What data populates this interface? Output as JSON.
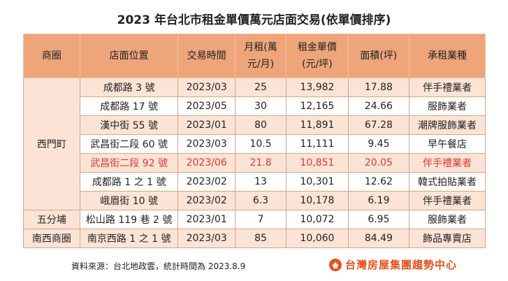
{
  "title": "2023 年台北市租金單價萬元店面交易(依單價排序)",
  "columns": [
    "商圈",
    "店面位置",
    "交易時間",
    "月租(萬元/月)",
    "租金單價(元/坪)",
    "面積(坪)",
    "承租業種"
  ],
  "groups": [
    {
      "district": "西門町",
      "rows": [
        {
          "cells": [
            "成都路 3 號",
            "2023/03",
            "25",
            "13,982",
            "17.88",
            "伴手禮業者"
          ]
        },
        {
          "cells": [
            "成都路 17 號",
            "2023/05",
            "30",
            "12,165",
            "24.66",
            "服飾業者"
          ]
        },
        {
          "cells": [
            "漢中街 55 號",
            "2023/01",
            "80",
            "11,891",
            "67.28",
            "潮牌服飾業者"
          ]
        },
        {
          "cells": [
            "武昌街二段 60 號",
            "2023/03",
            "10.5",
            "11,111",
            "9.45",
            "早午餐店"
          ]
        },
        {
          "cells": [
            "武昌街二段 92 號",
            "2023/06",
            "21.8",
            "10,851",
            "20.05",
            "伴手禮業者"
          ],
          "highlight": true
        },
        {
          "cells": [
            "成都路 1 之 1 號",
            "2023/02",
            "13",
            "10,301",
            "12.62",
            "韓式拍貼業者"
          ]
        },
        {
          "cells": [
            "峨眉街 10 號",
            "2023/02",
            "6.3",
            "10,178",
            "6.19",
            "伴手禮業者"
          ]
        }
      ]
    },
    {
      "district": "五分埔",
      "rows": [
        {
          "cells": [
            "松山路 119 巷 2 號",
            "2023/01",
            "7",
            "10,072",
            "6.95",
            "服飾業者"
          ]
        }
      ]
    },
    {
      "district": "南西商圈",
      "rows": [
        {
          "cells": [
            "南京西路 1 之 1 號",
            "2023/03",
            "85",
            "10,060",
            "84.49",
            "飾品專賣店"
          ]
        }
      ]
    }
  ],
  "footer": {
    "source": "資料來源：台北地政雲，統計時間為 2023.8.9",
    "logo": "台灣房屋集團趨勢中心"
  }
}
